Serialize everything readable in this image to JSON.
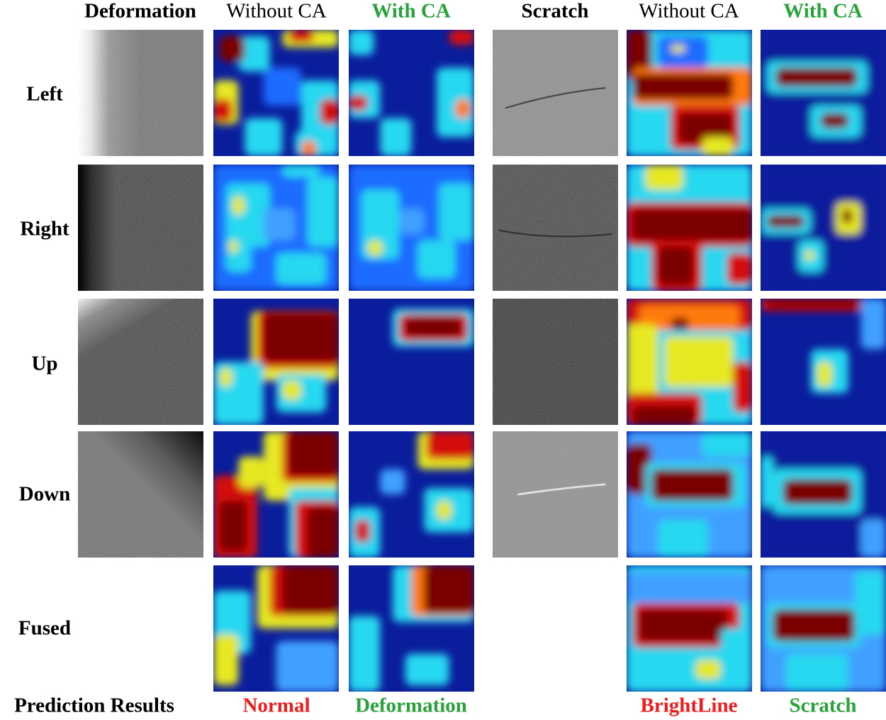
{
  "headers": {
    "deformation": "Deformation",
    "without_ca_1": "Without CA",
    "with_ca_1": "With CA",
    "scratch": "Scratch",
    "without_ca_2": "Without CA",
    "with_ca_2": "With CA"
  },
  "rows": {
    "left": "Left",
    "right": "Right",
    "up": "Up",
    "down": "Down",
    "fused": "Fused"
  },
  "footer": {
    "prediction_results": "Prediction Results",
    "deformation_without_ca": "Normal",
    "deformation_with_ca": "Deformation",
    "scratch_without_ca": "BrightLine",
    "scratch_with_ca": "Scratch"
  },
  "colors": {
    "correct_prediction": "#27a33a",
    "wrong_prediction": "#ee1c1c",
    "heatmap_background": "#0a1d9c"
  }
}
